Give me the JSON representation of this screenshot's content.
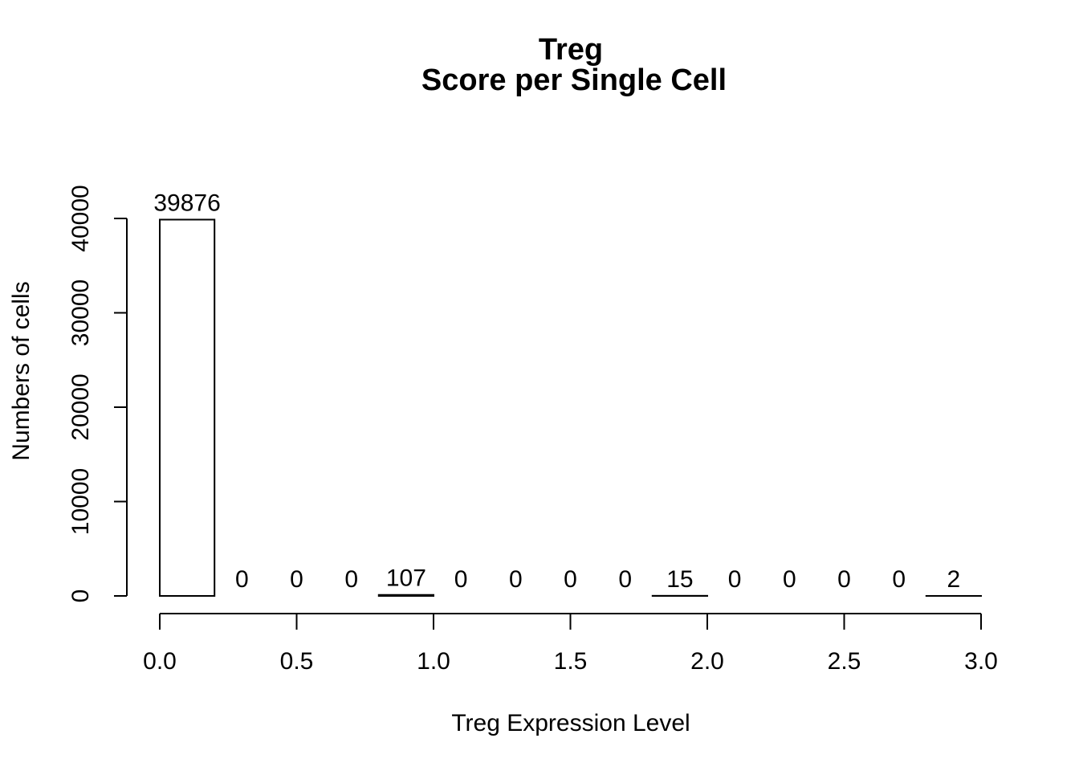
{
  "chart_data": {
    "type": "bar",
    "title": "Treg",
    "subtitle": "Score per Single Cell",
    "xlabel": "Treg Expression Level",
    "ylabel": "Numbers of cells",
    "bin_edges": [
      0.0,
      0.2,
      0.4,
      0.6,
      0.8,
      1.0,
      1.2,
      1.4,
      1.6,
      1.8,
      2.0,
      2.2,
      2.4,
      2.6,
      2.8,
      3.0
    ],
    "values": [
      39876,
      0,
      0,
      0,
      107,
      0,
      0,
      0,
      0,
      15,
      0,
      0,
      0,
      0,
      2
    ],
    "value_labels": [
      "39876",
      "0",
      "0",
      "0",
      "107",
      "0",
      "0",
      "0",
      "0",
      "15",
      "0",
      "0",
      "0",
      "0",
      "2"
    ],
    "xlim": [
      0,
      3.0
    ],
    "ylim": [
      0,
      40000
    ],
    "x_ticks": [
      0.0,
      0.5,
      1.0,
      1.5,
      2.0,
      2.5,
      3.0
    ],
    "x_tick_labels": [
      "0.0",
      "0.5",
      "1.0",
      "1.5",
      "2.0",
      "2.5",
      "3.0"
    ],
    "y_ticks": [
      0,
      10000,
      20000,
      30000,
      40000
    ],
    "y_tick_labels": [
      "0",
      "10000",
      "20000",
      "30000",
      "40000"
    ],
    "grid": false,
    "legend": "none"
  }
}
